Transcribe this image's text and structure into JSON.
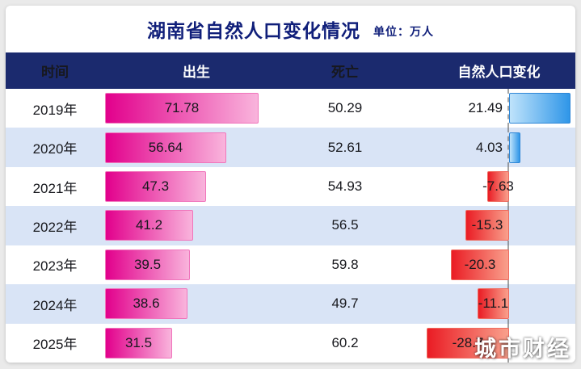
{
  "title": "湖南省自然人口变化情况",
  "unit_label": "单位：万人",
  "watermark": "城市财经",
  "chart_data": {
    "type": "table",
    "title": "湖南省自然人口变化情况",
    "unit": "万人",
    "columns": [
      "时间",
      "出生",
      "死亡",
      "自然人口变化"
    ],
    "categories": [
      "2019年",
      "2020年",
      "2021年",
      "2022年",
      "2023年",
      "2024年",
      "2025年"
    ],
    "series": [
      {
        "name": "出生",
        "values": [
          71.78,
          56.64,
          47.3,
          41.2,
          39.5,
          38.6,
          31.5
        ]
      },
      {
        "name": "死亡",
        "values": [
          50.29,
          52.61,
          54.93,
          56.5,
          59.8,
          49.7,
          60.2
        ]
      },
      {
        "name": "自然人口变化",
        "values": [
          21.49,
          4.03,
          -7.63,
          -15.3,
          -20.3,
          -11.1,
          -28.7
        ]
      }
    ],
    "legend": "none",
    "bar_styles": {
      "出生": "pink-gradient-bar",
      "自然人口变化_positive": "blue-gradient-bar",
      "自然人口变化_negative": "red-gradient-bar"
    }
  },
  "colors": {
    "title_color": "#101f7a",
    "header_bg": "#1b2a6e",
    "alt_row_bg": "#d9e4f6",
    "birth_bar_start": "#e2008c",
    "birth_bar_end": "#f9b4dc",
    "positive_bar_start": "#bfe3fb",
    "positive_bar_end": "#2f96e8",
    "negative_bar_start": "#ea1c24",
    "negative_bar_end": "#f9a08c"
  }
}
